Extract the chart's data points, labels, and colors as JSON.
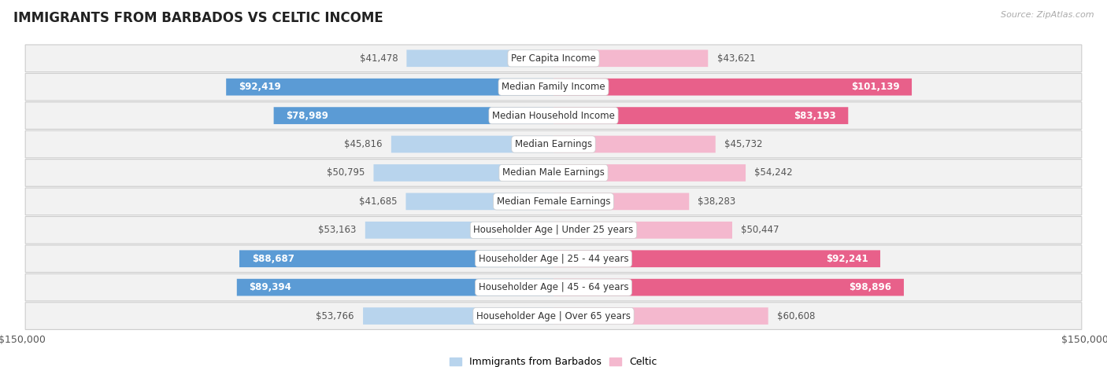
{
  "title": "IMMIGRANTS FROM BARBADOS VS CELTIC INCOME",
  "source": "Source: ZipAtlas.com",
  "categories": [
    "Per Capita Income",
    "Median Family Income",
    "Median Household Income",
    "Median Earnings",
    "Median Male Earnings",
    "Median Female Earnings",
    "Householder Age | Under 25 years",
    "Householder Age | 25 - 44 years",
    "Householder Age | 45 - 64 years",
    "Householder Age | Over 65 years"
  ],
  "barbados_values": [
    41478,
    92419,
    78989,
    45816,
    50795,
    41685,
    53163,
    88687,
    89394,
    53766
  ],
  "celtic_values": [
    43621,
    101139,
    83193,
    45732,
    54242,
    38283,
    50447,
    92241,
    98896,
    60608
  ],
  "barbados_color_light": "#b8d4ed",
  "barbados_color_dark": "#5b9bd5",
  "celtic_color_light": "#f4b8ce",
  "celtic_color_dark": "#e8608a",
  "bar_height": 0.58,
  "xlim": 150000,
  "row_bg_color": "#f0f0f0",
  "row_border_color": "#d8d8d8",
  "text_color_outside": "#555555",
  "text_color_white": "#ffffff",
  "threshold_dark_label": 65000,
  "legend_label_barbados": "Immigrants from Barbados",
  "legend_label_celtic": "Celtic",
  "xlabel_left": "$150,000",
  "xlabel_right": "$150,000",
  "label_fontsize": 8.5,
  "category_fontsize": 8.5,
  "title_fontsize": 12
}
